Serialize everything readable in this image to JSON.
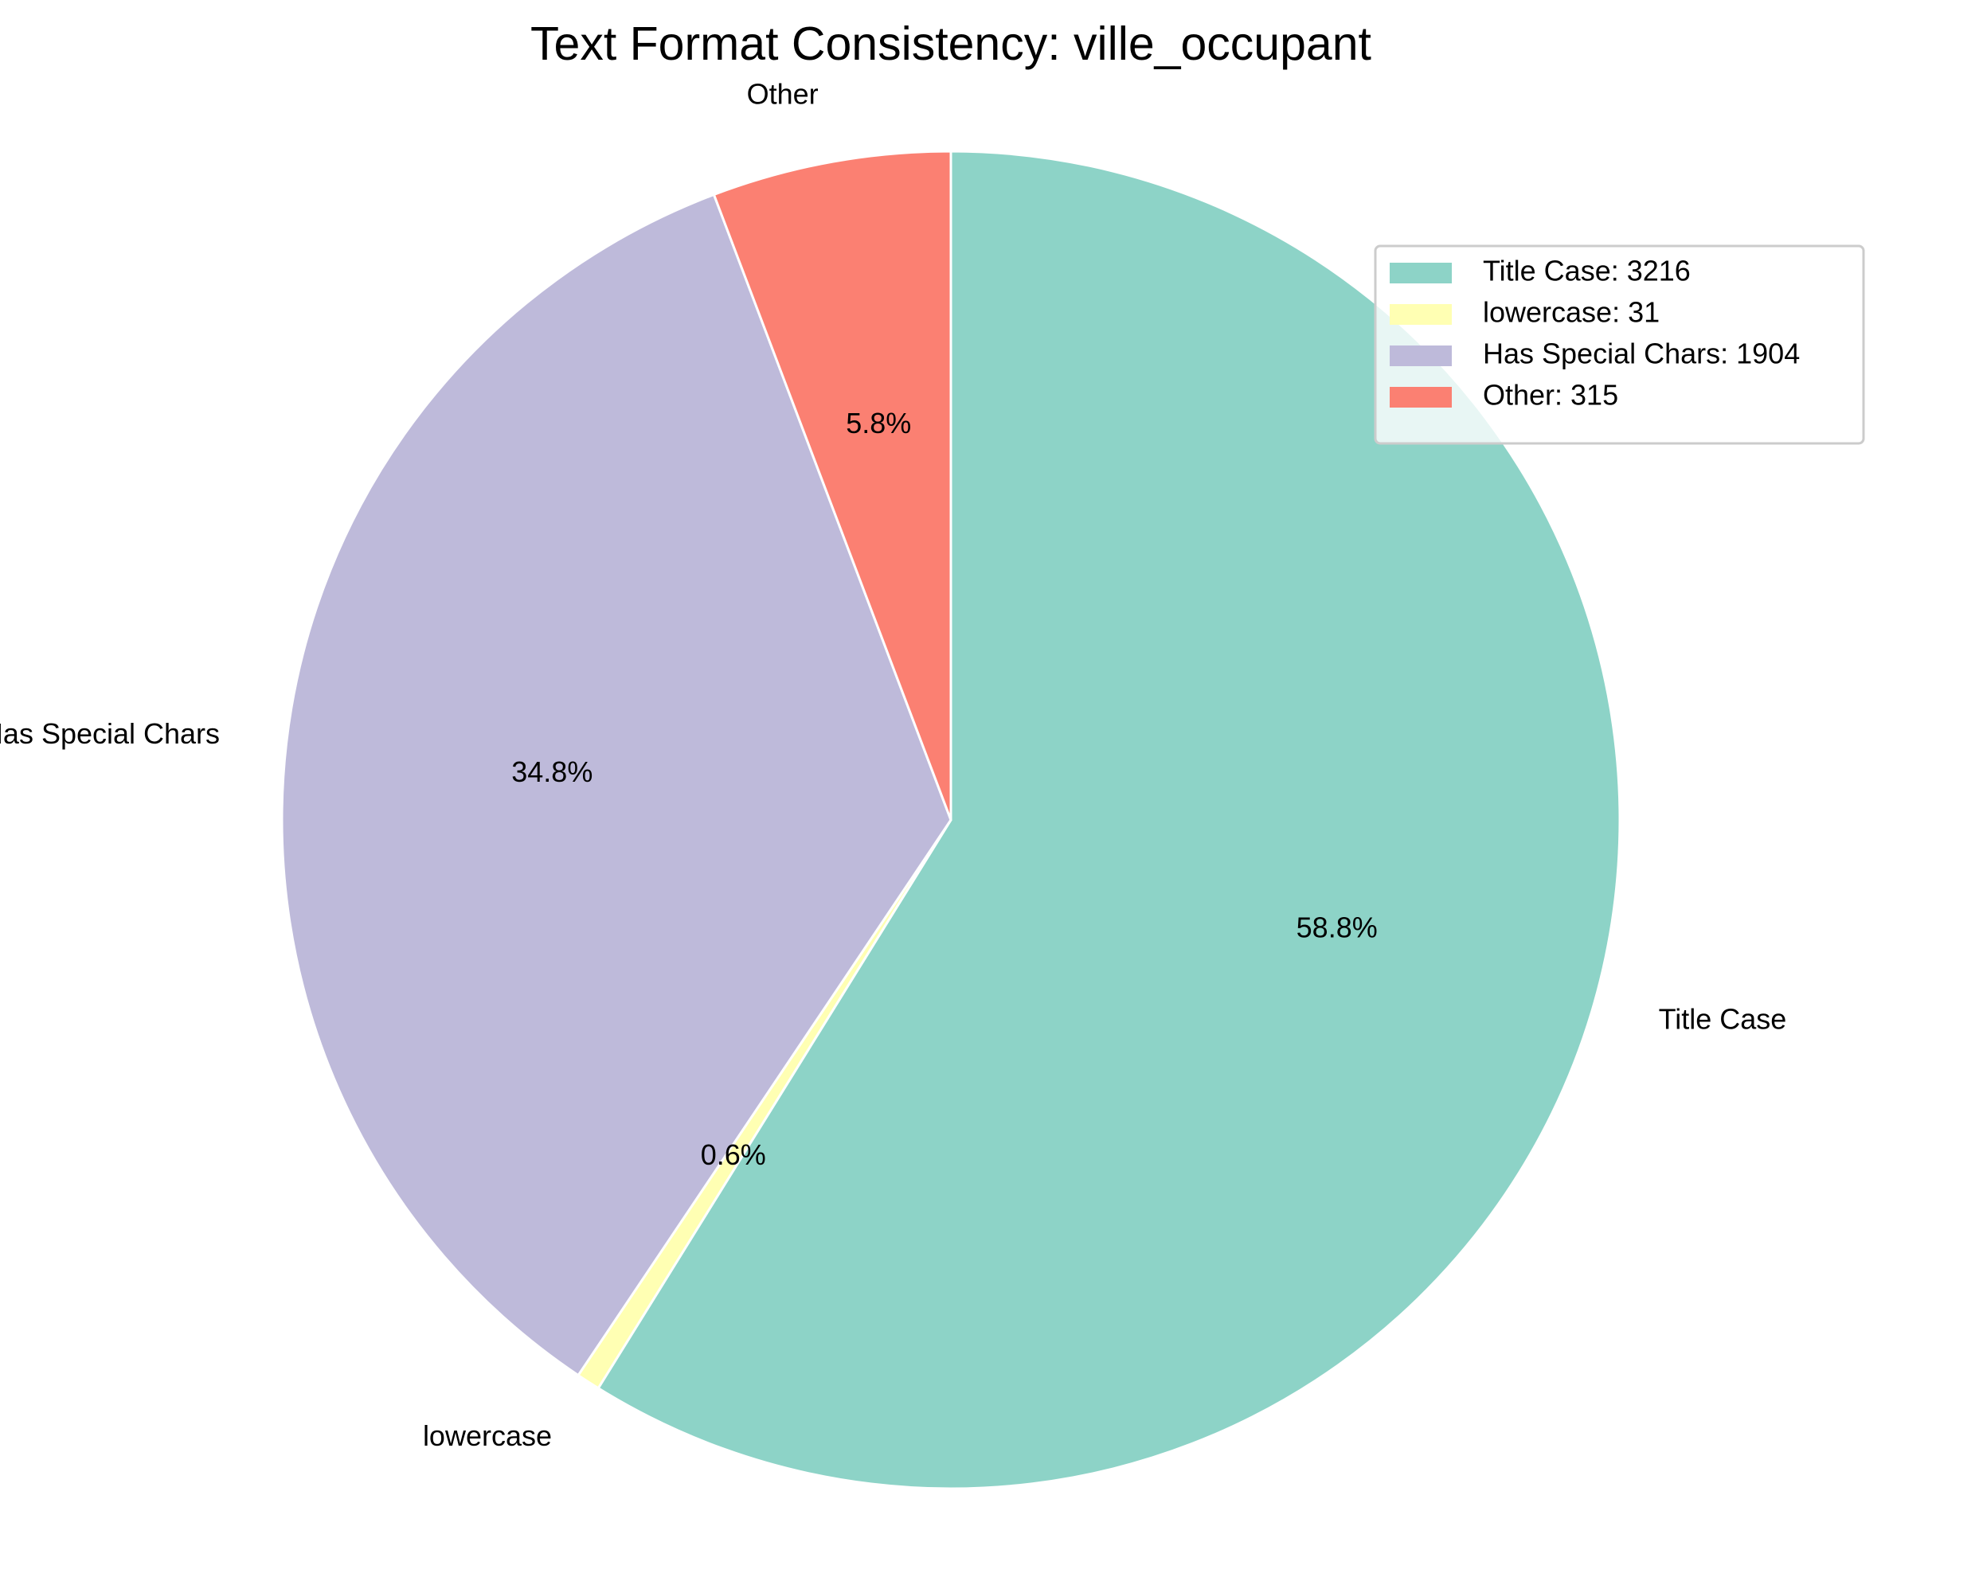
{
  "chart_data": {
    "type": "pie",
    "title": "Text Format Consistency: ville_occupant",
    "categories": [
      "Title Case",
      "lowercase",
      "Has Special Chars",
      "Other"
    ],
    "values": [
      3216,
      31,
      1904,
      315
    ],
    "percent_labels": [
      "58.8%",
      "0.6%",
      "34.8%",
      "5.8%"
    ],
    "legend_labels": [
      "Title Case: 3216",
      "lowercase: 31",
      "Has Special Chars: 1904",
      "Other: 315"
    ],
    "colors": [
      "#8dd3c7",
      "#ffffb3",
      "#bebada",
      "#fb8072"
    ],
    "start_angle": 90,
    "direction": "clockwise",
    "legend_placement": "upper-right"
  }
}
